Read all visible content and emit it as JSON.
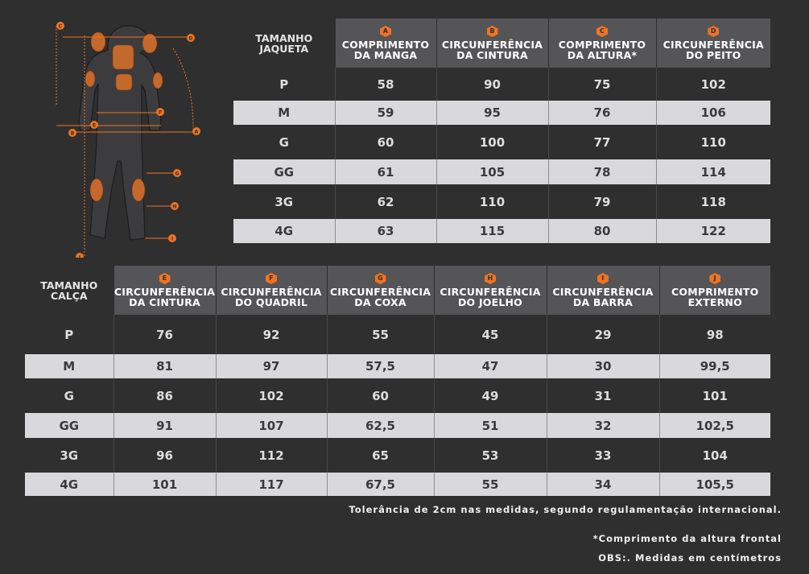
{
  "jacket": {
    "label": "TAMANHO JAQUETA",
    "columns": [
      {
        "badge": "A",
        "label": "COMPRIMENTO DA MANGA"
      },
      {
        "badge": "B",
        "label": "CIRCUNFERÊNCIA DA CINTURA"
      },
      {
        "badge": "C",
        "label": "COMPRIMENTO DA ALTURA*"
      },
      {
        "badge": "D",
        "label": "CIRCUNFERÊNCIA DO PEITO"
      }
    ],
    "rows": [
      {
        "size": "P",
        "values": [
          "58",
          "90",
          "75",
          "102"
        ]
      },
      {
        "size": "M",
        "values": [
          "59",
          "95",
          "76",
          "106"
        ]
      },
      {
        "size": "G",
        "values": [
          "60",
          "100",
          "77",
          "110"
        ]
      },
      {
        "size": "GG",
        "values": [
          "61",
          "105",
          "78",
          "114"
        ]
      },
      {
        "size": "3G",
        "values": [
          "62",
          "110",
          "79",
          "118"
        ]
      },
      {
        "size": "4G",
        "values": [
          "63",
          "115",
          "80",
          "122"
        ]
      }
    ]
  },
  "pants": {
    "label": "TAMANHO CALÇA",
    "columns": [
      {
        "badge": "E",
        "label": "CIRCUNFERÊNCIA DA CINTURA"
      },
      {
        "badge": "F",
        "label": "CIRCUNFERÊNCIA DO QUADRIL"
      },
      {
        "badge": "G",
        "label": "CIRCUNFERÊNCIA DA COXA"
      },
      {
        "badge": "H",
        "label": "CIRCUNFERÊNCIA DO  JOELHO"
      },
      {
        "badge": "I",
        "label": "CIRCUNFERÊNCIA DA BARRA"
      },
      {
        "badge": "J",
        "label": "COMPRIMENTO EXTERNO"
      }
    ],
    "rows": [
      {
        "size": "P",
        "values": [
          "76",
          "92",
          "55",
          "45",
          "29",
          "98"
        ]
      },
      {
        "size": "M",
        "values": [
          "81",
          "97",
          "57,5",
          "47",
          "30",
          "99,5"
        ]
      },
      {
        "size": "G",
        "values": [
          "86",
          "102",
          "60",
          "49",
          "31",
          "101"
        ]
      },
      {
        "size": "GG",
        "values": [
          "91",
          "107",
          "62,5",
          "51",
          "32",
          "102,5"
        ]
      },
      {
        "size": "3G",
        "values": [
          "96",
          "112",
          "65",
          "53",
          "33",
          "104"
        ]
      },
      {
        "size": "4G",
        "values": [
          "101",
          "117",
          "67,5",
          "55",
          "34",
          "105,5"
        ]
      }
    ]
  },
  "diagram": {
    "markers": [
      "C",
      "D",
      "F",
      "E",
      "B",
      "A",
      "G",
      "H",
      "I",
      "J"
    ]
  },
  "footer": {
    "tolerance": "Tolerância de 2cm nas medidas, segundo regulamentação internacional.",
    "note_height": "*Comprimento da altura frontal",
    "note_units": "OBS:. Medidas em centímetros"
  },
  "colors": {
    "background": "#2f2f2f",
    "header": "#555558",
    "accent": "#f07322",
    "light_row": "#d9d9dc"
  }
}
